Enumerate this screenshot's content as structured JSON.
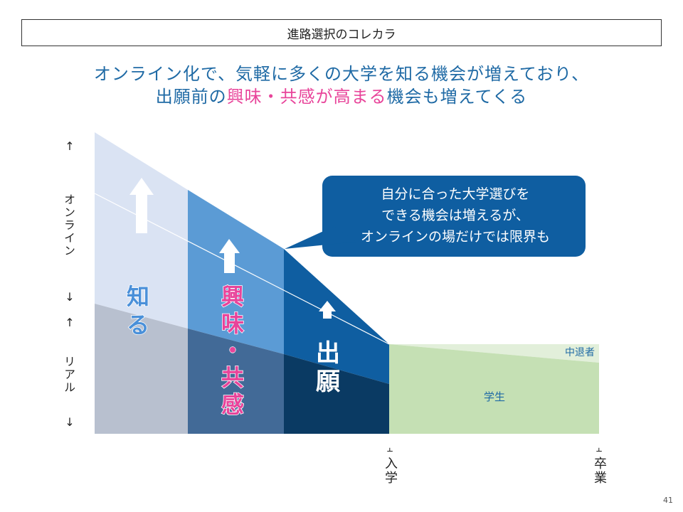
{
  "header": {
    "title": "進路選択のコレカラ"
  },
  "headline": {
    "line1": "オンライン化で、気軽に多くの大学を知る機会が増えており、",
    "line2_pre": "出願前の",
    "line2_highlight": "興味・共感が高まる",
    "line2_post": "機会も増えてくる"
  },
  "y_axis": {
    "online_up": "↑",
    "online_label": "オンライン",
    "online_down": "↓",
    "real_up": "↑",
    "real_label": "リアル",
    "real_down": "↓"
  },
  "stages": [
    {
      "label": "知る",
      "color": "#4a90d9"
    },
    {
      "label": "興味・共感",
      "color": "#e8449a"
    },
    {
      "label": "出願",
      "color": "#ffffff"
    }
  ],
  "callout": {
    "line1": "自分に合った大学選びを",
    "line2": "できる機会は増えるが、",
    "line3": "オンラインの場だけでは限界も"
  },
  "after_entry": {
    "dropout_label": "中退者",
    "student_label": "学生"
  },
  "milestones": {
    "entry_icon": "pin-icon",
    "entry_label": "入学",
    "graduation_icon": "pin-icon",
    "graduation_label": "卒業"
  },
  "colors": {
    "band1_top": "#dae3f3",
    "band1_bottom": "#b8c0cf",
    "band2_top": "#5b9bd5",
    "band2_bottom": "#426a97",
    "band3_top": "#0f5ea1",
    "band3_bottom": "#0a3a63",
    "student": "#c5e0b4",
    "dropout": "#e2efda",
    "callout": "#0f5ea1",
    "headline": "#1f6aa5",
    "highlight": "#e8449a"
  },
  "page_number": "41"
}
